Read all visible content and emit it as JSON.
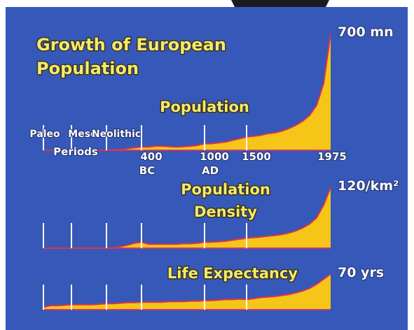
{
  "chart_data": [
    {
      "type": "area",
      "title_lines": [
        "Growth of European",
        "Population"
      ],
      "name_lines": [
        "Population"
      ],
      "top_label": "700 mn",
      "era_labels": [
        "Paleo",
        "Meso",
        "Neolithic"
      ],
      "era_caption": "Periods",
      "categories": [
        null,
        null,
        null,
        null,
        null,
        null,
        null,
        null,
        null,
        null,
        null,
        null,
        null,
        null,
        "400",
        null,
        null,
        null,
        null,
        null,
        null,
        null,
        null,
        "1000",
        null,
        null,
        null,
        null,
        null,
        "1500",
        null,
        null,
        null,
        null,
        null,
        null,
        null,
        null,
        null,
        null,
        null,
        "1975"
      ],
      "category_sublabels": [
        null,
        null,
        null,
        null,
        null,
        null,
        null,
        null,
        null,
        null,
        null,
        null,
        null,
        null,
        "BC",
        null,
        null,
        null,
        null,
        null,
        null,
        null,
        null,
        "AD",
        null,
        null,
        null,
        null,
        null,
        null,
        null,
        null,
        null,
        null,
        null,
        null,
        null,
        null,
        null,
        null,
        null,
        null
      ],
      "values": [
        0,
        0,
        0,
        0,
        0,
        0,
        0,
        0,
        0,
        0,
        2,
        5,
        10,
        15,
        20,
        20,
        25,
        25,
        22,
        20,
        22,
        25,
        30,
        40,
        40,
        45,
        50,
        60,
        70,
        80,
        85,
        90,
        100,
        105,
        115,
        130,
        150,
        175,
        210,
        270,
        400,
        700
      ],
      "ylim": [
        0,
        700
      ],
      "color": "#f5c518",
      "line_color": "#d8344a"
    },
    {
      "type": "area",
      "name_lines": [
        "Population",
        "Density"
      ],
      "top_label": "120/km²",
      "values": [
        0,
        0,
        0,
        0,
        0,
        0,
        0,
        0,
        0,
        0,
        1,
        3,
        6,
        10,
        12,
        8,
        8,
        8,
        8,
        8,
        9,
        9,
        10,
        12,
        12,
        13,
        14,
        16,
        18,
        20,
        21,
        22,
        24,
        25,
        27,
        30,
        34,
        40,
        48,
        60,
        85,
        120
      ],
      "ylim": [
        0,
        120
      ],
      "color": "#f5c518",
      "line_color": "#d8344a"
    },
    {
      "type": "area",
      "name_lines": [
        "Life Expectancy"
      ],
      "top_label": "70 yrs",
      "values": [
        5,
        8,
        8,
        9,
        10,
        10,
        10,
        10,
        11,
        12,
        12,
        13,
        14,
        14,
        15,
        15,
        15,
        15,
        16,
        16,
        16,
        17,
        17,
        18,
        18,
        19,
        20,
        20,
        21,
        20,
        22,
        24,
        25,
        26,
        28,
        30,
        33,
        37,
        42,
        50,
        60,
        70
      ],
      "ylim": [
        0,
        70
      ],
      "color": "#f5c518",
      "line_color": "#d8344a"
    }
  ]
}
